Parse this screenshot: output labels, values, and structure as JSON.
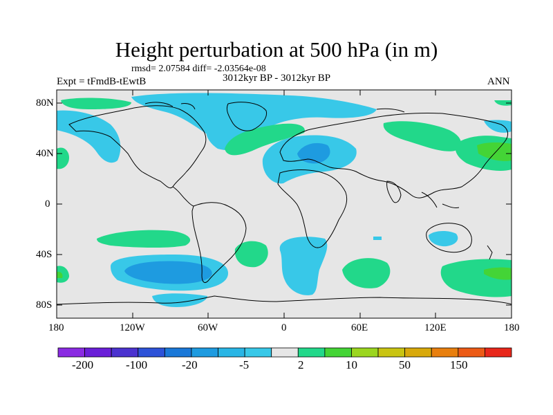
{
  "title": "Height perturbation at 500 hPa (in m)",
  "stats": "rmsd= 2.07584 diff= -2.03564e-08",
  "experiment": "Expt = tFmdB-tEwtB",
  "period": "3012kyr BP - 3012kyr BP",
  "season": "ANN",
  "lat_labels": [
    "80N",
    "40N",
    "0",
    "40S",
    "80S"
  ],
  "lon_labels": [
    "180",
    "120W",
    "60W",
    "0",
    "60E",
    "120E",
    "180"
  ],
  "colorbar": {
    "colors": [
      "#8a2be2",
      "#6a1fd8",
      "#4b32cf",
      "#2d52d8",
      "#1a78d8",
      "#1e9be0",
      "#29b5e5",
      "#38c8e8",
      "#e6e6e6",
      "#22d88a",
      "#44d436",
      "#9bd61f",
      "#c9c412",
      "#d8a90b",
      "#e87f0e",
      "#ec5a16",
      "#e8271b"
    ],
    "labels": [
      "-200",
      "-100",
      "-20",
      "-5",
      "2",
      "10",
      "50",
      "150"
    ]
  },
  "fill_colors": {
    "background": "#e6e6e6",
    "neg_weak": "#38c8e8",
    "neg_mid": "#1e9be0",
    "pos_weak": "#22d88a",
    "pos_mid": "#44d436"
  }
}
